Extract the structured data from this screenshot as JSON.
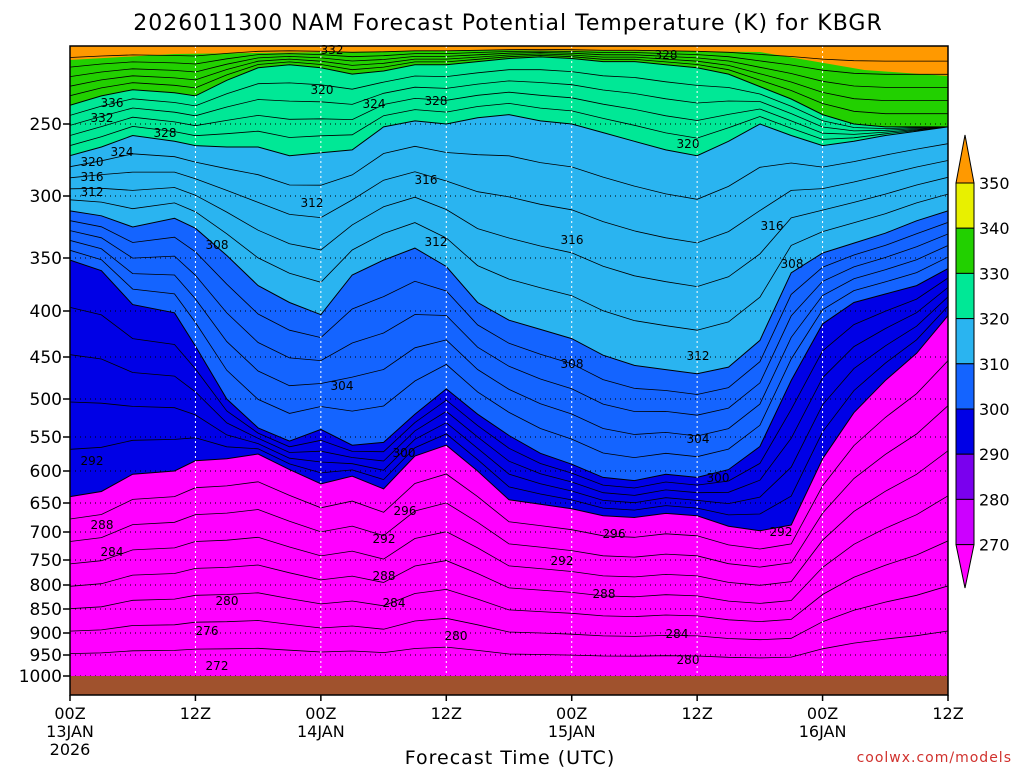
{
  "chart_data": {
    "type": "contour",
    "title": "2026011300 NAM Forecast Potential Temperature (K) for KBGR",
    "xlabel": "Forecast Time (UTC)",
    "ylabel": "Pressure (hPa)",
    "credit": "coolwx.com/models",
    "x_range_hours": [
      0,
      84
    ],
    "y_range_hpa": [
      1025,
      200
    ],
    "y_ticks": [
      250,
      300,
      350,
      400,
      450,
      500,
      550,
      600,
      650,
      700,
      750,
      800,
      850,
      900,
      950,
      1000
    ],
    "x_ticks": [
      {
        "hour": 0,
        "label": "00Z",
        "sub": "13JAN",
        "sub2": "2026"
      },
      {
        "hour": 12,
        "label": "12Z",
        "sub": "",
        "sub2": ""
      },
      {
        "hour": 24,
        "label": "00Z",
        "sub": "14JAN",
        "sub2": ""
      },
      {
        "hour": 36,
        "label": "12Z",
        "sub": "",
        "sub2": ""
      },
      {
        "hour": 48,
        "label": "00Z",
        "sub": "15JAN",
        "sub2": ""
      },
      {
        "hour": 60,
        "label": "12Z",
        "sub": "",
        "sub2": ""
      },
      {
        "hour": 72,
        "label": "00Z",
        "sub": "16JAN",
        "sub2": ""
      },
      {
        "hour": 84,
        "label": "12Z",
        "sub": "",
        "sub2": ""
      }
    ],
    "colorbar": {
      "levels": [
        270,
        280,
        290,
        300,
        310,
        320,
        330,
        340,
        350
      ],
      "colors": [
        "#ff00ff",
        "#cc00ff",
        "#7a00ee",
        "#0000e6",
        "#1464ff",
        "#2ab4f0",
        "#00e896",
        "#22d000",
        "#e8f000",
        "#ff9900"
      ]
    },
    "series": [
      {
        "theta": 290,
        "x": [
          0,
          3,
          6,
          10,
          12,
          15,
          18,
          21,
          24,
          27,
          30,
          33,
          36,
          39,
          42,
          45,
          48,
          51,
          54,
          57,
          60,
          63,
          66,
          69,
          72,
          75,
          78,
          81,
          84
        ],
        "p": [
          640,
          632,
          605,
          600,
          585,
          582,
          575,
          598,
          620,
          608,
          628,
          578,
          562,
          600,
          645,
          652,
          660,
          672,
          675,
          668,
          672,
          690,
          698,
          688,
          582,
          518,
          478,
          446,
          405
        ]
      },
      {
        "theta": 300,
        "x": [
          0,
          3,
          6,
          10,
          12,
          15,
          18,
          21,
          24,
          27,
          30,
          33,
          36,
          39,
          42,
          45,
          48,
          51,
          54,
          57,
          60,
          63,
          66,
          69,
          72,
          75,
          78,
          81,
          84
        ],
        "p": [
          352,
          362,
          394,
          402,
          438,
          500,
          538,
          556,
          540,
          562,
          558,
          520,
          488,
          520,
          548,
          574,
          590,
          610,
          615,
          605,
          610,
          598,
          564,
          478,
          414,
          392,
          384,
          376,
          360
        ]
      },
      {
        "theta": 310,
        "x": [
          0,
          3,
          6,
          10,
          12,
          15,
          18,
          21,
          24,
          27,
          30,
          33,
          36,
          39,
          42,
          45,
          48,
          51,
          54,
          57,
          60,
          63,
          66,
          69,
          72,
          75,
          78,
          81,
          84
        ],
        "p": [
          312,
          316,
          325,
          318,
          326,
          348,
          376,
          392,
          404,
          366,
          352,
          342,
          358,
          392,
          410,
          420,
          430,
          448,
          460,
          465,
          470,
          462,
          432,
          364,
          346,
          338,
          330,
          320,
          312
        ]
      },
      {
        "theta": 320,
        "x": [
          0,
          3,
          6,
          10,
          12,
          15,
          18,
          21,
          24,
          27,
          30,
          33,
          36,
          39,
          42,
          45,
          48,
          51,
          54,
          57,
          60,
          63,
          66,
          69,
          72,
          75,
          78,
          81,
          84
        ],
        "p": [
          272,
          266,
          258,
          262,
          265,
          266,
          266,
          272,
          270,
          268,
          252,
          248,
          250,
          246,
          244,
          248,
          250,
          256,
          262,
          268,
          272,
          262,
          250,
          258,
          265,
          262,
          258,
          255,
          252
        ]
      },
      {
        "theta": 330,
        "x": [
          0,
          3,
          6,
          10,
          12,
          15,
          18,
          21,
          24,
          27,
          30,
          33,
          36,
          39,
          42,
          45,
          48,
          51,
          54,
          57,
          60,
          63,
          66,
          69,
          72,
          75,
          78,
          81,
          84
        ],
        "p": [
          238,
          232,
          228,
          230,
          232,
          222,
          214,
          212,
          214,
          218,
          216,
          212,
          212,
          210,
          208,
          207,
          208,
          210,
          210,
          212,
          214,
          218,
          226,
          234,
          244,
          250,
          252,
          252,
          252
        ]
      }
    ],
    "contour_labels": [
      "336",
      "332",
      "328",
      "324",
      "320",
      "316",
      "312",
      "308",
      "304",
      "300",
      "296",
      "292",
      "288",
      "284",
      "280",
      "276",
      "272"
    ]
  }
}
